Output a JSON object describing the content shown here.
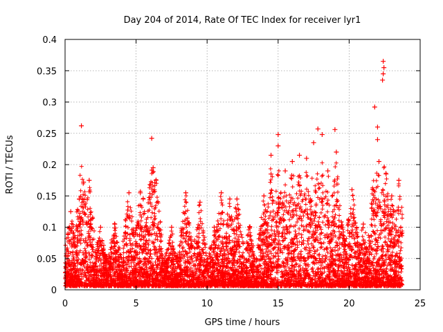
{
  "chart_data": {
    "type": "scatter",
    "title": "Day 204 of 2014, Rate Of TEC Index for receiver lyr1",
    "xlabel": "GPS time / hours",
    "ylabel": "ROTI / TECUs",
    "xlim": [
      0,
      25
    ],
    "ylim": [
      0,
      0.4
    ],
    "grid": true,
    "marker": "+",
    "series_color": "#ff0000",
    "x_ticks": [
      {
        "value": 0,
        "label": "0"
      },
      {
        "value": 5,
        "label": "5"
      },
      {
        "value": 10,
        "label": "10"
      },
      {
        "value": 15,
        "label": "15"
      },
      {
        "value": 20,
        "label": "20"
      },
      {
        "value": 25,
        "label": "25"
      }
    ],
    "y_ticks": [
      {
        "value": 0,
        "label": "0"
      },
      {
        "value": 0.05,
        "label": "0.05"
      },
      {
        "value": 0.1,
        "label": "0.1"
      },
      {
        "value": 0.15,
        "label": "0.15"
      },
      {
        "value": 0.2,
        "label": "0.2"
      },
      {
        "value": 0.25,
        "label": "0.25"
      },
      {
        "value": 0.3,
        "label": "0.3"
      },
      {
        "value": 0.35,
        "label": "0.35"
      },
      {
        "value": 0.4,
        "label": "0.4"
      }
    ],
    "data_range_hours": [
      0,
      23.75
    ],
    "activity_peaks": [
      {
        "x": 0.4,
        "y": 0.125
      },
      {
        "x": 1.0,
        "y": 0.145
      },
      {
        "x": 1.15,
        "y": 0.262
      },
      {
        "x": 1.3,
        "y": 0.172
      },
      {
        "x": 1.7,
        "y": 0.175
      },
      {
        "x": 2.5,
        "y": 0.1
      },
      {
        "x": 3.5,
        "y": 0.105
      },
      {
        "x": 4.5,
        "y": 0.155
      },
      {
        "x": 5.3,
        "y": 0.155
      },
      {
        "x": 5.5,
        "y": 0.145
      },
      {
        "x": 6.1,
        "y": 0.242
      },
      {
        "x": 6.2,
        "y": 0.195
      },
      {
        "x": 6.4,
        "y": 0.175
      },
      {
        "x": 7.5,
        "y": 0.1
      },
      {
        "x": 8.5,
        "y": 0.155
      },
      {
        "x": 9.5,
        "y": 0.14
      },
      {
        "x": 10.5,
        "y": 0.1
      },
      {
        "x": 11.0,
        "y": 0.155
      },
      {
        "x": 11.6,
        "y": 0.145
      },
      {
        "x": 12.1,
        "y": 0.145
      },
      {
        "x": 13.0,
        "y": 0.1
      },
      {
        "x": 14.0,
        "y": 0.15
      },
      {
        "x": 14.5,
        "y": 0.185
      },
      {
        "x": 14.5,
        "y": 0.215
      },
      {
        "x": 15.0,
        "y": 0.248
      },
      {
        "x": 15.0,
        "y": 0.23
      },
      {
        "x": 15.5,
        "y": 0.19
      },
      {
        "x": 16.0,
        "y": 0.205
      },
      {
        "x": 16.5,
        "y": 0.215
      },
      {
        "x": 17.0,
        "y": 0.21
      },
      {
        "x": 17.5,
        "y": 0.235
      },
      {
        "x": 17.8,
        "y": 0.257
      },
      {
        "x": 18.1,
        "y": 0.248
      },
      {
        "x": 18.5,
        "y": 0.19
      },
      {
        "x": 19.0,
        "y": 0.256
      },
      {
        "x": 19.1,
        "y": 0.22
      },
      {
        "x": 19.5,
        "y": 0.1
      },
      {
        "x": 20.2,
        "y": 0.16
      },
      {
        "x": 21.0,
        "y": 0.105
      },
      {
        "x": 21.8,
        "y": 0.292
      },
      {
        "x": 22.0,
        "y": 0.26
      },
      {
        "x": 22.0,
        "y": 0.24
      },
      {
        "x": 22.1,
        "y": 0.205
      },
      {
        "x": 22.4,
        "y": 0.365
      },
      {
        "x": 22.45,
        "y": 0.355
      },
      {
        "x": 22.4,
        "y": 0.345
      },
      {
        "x": 22.35,
        "y": 0.335
      },
      {
        "x": 22.6,
        "y": 0.185
      },
      {
        "x": 23.0,
        "y": 0.15
      },
      {
        "x": 23.5,
        "y": 0.175
      }
    ]
  }
}
